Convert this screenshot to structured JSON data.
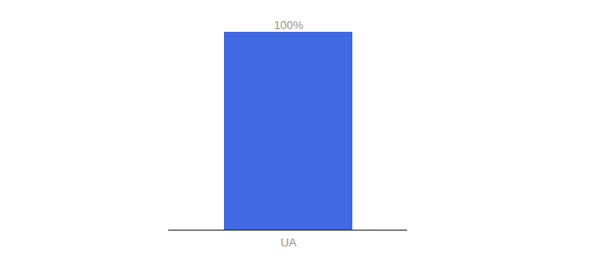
{
  "chart_data": {
    "type": "bar",
    "categories": [
      "UA"
    ],
    "values": [
      100
    ],
    "value_labels": [
      "100%"
    ],
    "colors": [
      "#4169e1"
    ],
    "ylim": [
      0,
      100
    ],
    "data_labels": true,
    "tick_labels": "x"
  }
}
